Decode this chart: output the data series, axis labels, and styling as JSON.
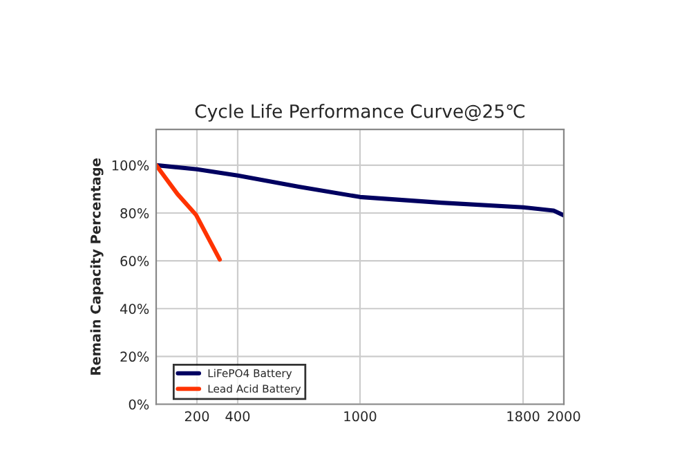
{
  "chart_data": {
    "type": "line",
    "title": "Cycle Life Performance Curve@25℃",
    "ylabel": "Remain Capacity Percentage",
    "xlim": [
      0,
      2000
    ],
    "xticks": [
      200,
      400,
      1000,
      1800,
      2000
    ],
    "ylim": [
      0,
      115
    ],
    "yticks": [
      {
        "value": 0,
        "label": "0%"
      },
      {
        "value": 20,
        "label": "20%"
      },
      {
        "value": 40,
        "label": "40%"
      },
      {
        "value": 60,
        "label": "60%"
      },
      {
        "value": 80,
        "label": "80%"
      },
      {
        "value": 100,
        "label": "100%"
      }
    ],
    "grid": true,
    "legend": "bottom left",
    "marker": "none",
    "line_style": "solid",
    "series": [
      {
        "name": "LiFePO4 Battery",
        "color": "#000060",
        "x": [
          0,
          200,
          400,
          700,
          1000,
          1400,
          1800,
          1950,
          2000
        ],
        "values": [
          100,
          98.3,
          95.7,
          91,
          86.7,
          84.3,
          82.4,
          81,
          79
        ]
      },
      {
        "name": "Lead Acid Battery",
        "color": "#ff3300",
        "x": [
          0,
          104,
          195,
          312
        ],
        "values": [
          100,
          88,
          79.3,
          60.5
        ]
      }
    ]
  }
}
